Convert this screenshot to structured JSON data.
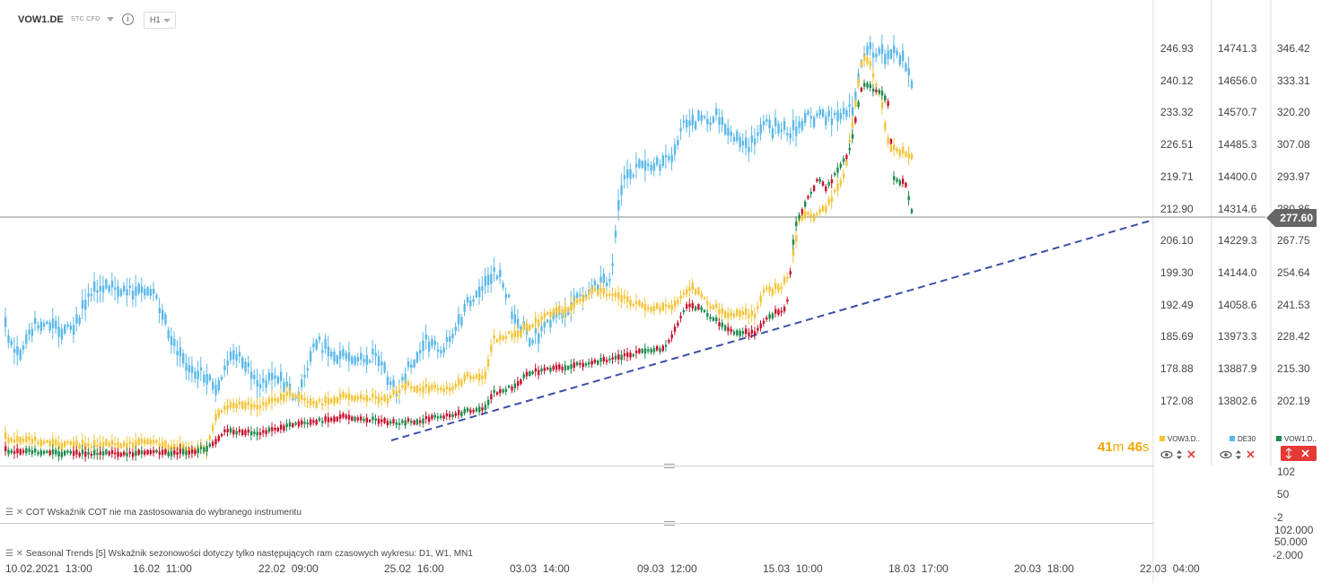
{
  "header": {
    "symbol": "VOW1.DE",
    "instrument_type": "STC CFD",
    "info_icon": "i",
    "timeframe": "H1"
  },
  "price_axis_1": [
    "246.93",
    "240.12",
    "233.32",
    "226.51",
    "219.71",
    "212.90",
    "206.10",
    "199.30",
    "192.49",
    "185.69",
    "178.88",
    "172.08"
  ],
  "price_axis_2": [
    "14741.3",
    "14656.0",
    "14570.7",
    "14485.3",
    "14400.0",
    "14314.6",
    "14229.3",
    "14144.0",
    "14058.6",
    "13973.3",
    "13887.9",
    "13802.6"
  ],
  "price_axis_3": [
    "346.42",
    "333.31",
    "320.20",
    "307.08",
    "293.97",
    "280.86",
    "267.75",
    "254.64",
    "241.53",
    "228.42",
    "215.30",
    "202.19"
  ],
  "current_price": "277.60",
  "timer": {
    "minutes": "41",
    "m": "m",
    "seconds": "46",
    "s": "s"
  },
  "legend": [
    {
      "label": "VOW3.D..",
      "color": "#f2c438"
    },
    {
      "label": "DE30",
      "color": "#5bb8e8"
    },
    {
      "label": "VOW1.D..",
      "color": "#1b8a4c"
    }
  ],
  "cot_panel": {
    "text": "COT Wskaźnik COT nie ma zastosowania do wybranego instrumentu",
    "axis": [
      "102",
      "50",
      "-2"
    ]
  },
  "seasonal_panel": {
    "text": "Seasonal Trends [5] Wskaźnik sezonowości dotyczy tylko następujących ram czasowych wykresu: D1, W1, MN1",
    "axis": [
      "102.000",
      "50.000",
      "-2.000"
    ]
  },
  "time_axis": [
    "10.02.2021  13:00",
    "16.02  11:00",
    "22.02  09:00",
    "25.02  16:00",
    "03.03  14:00",
    "09.03  12:00",
    "15.03  10:00",
    "18.03  17:00",
    "20.03  18:00",
    "22.03  04:00"
  ],
  "colors": {
    "yellow": "#f2c438",
    "blue": "#5bb8e8",
    "green": "#1b8a4c",
    "red": "#c8102e",
    "trend": "#3b4fa8"
  }
}
